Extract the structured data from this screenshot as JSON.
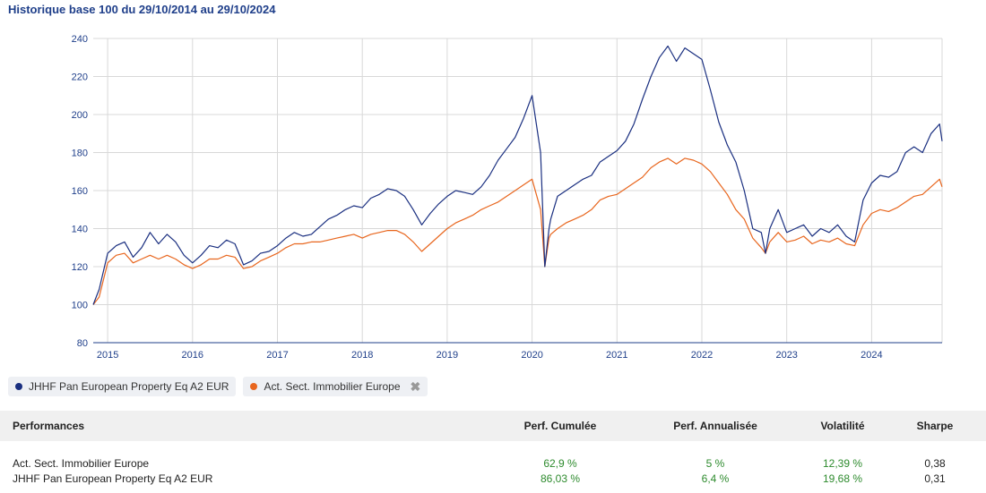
{
  "header": {
    "title": "Historique base 100 du 29/10/2014 au 29/10/2024"
  },
  "chart_data": {
    "type": "line",
    "title": "Historique base 100 du 29/10/2014 au 29/10/2024",
    "ylim": [
      80,
      240
    ],
    "yticks": [
      80,
      100,
      120,
      140,
      160,
      180,
      200,
      220,
      240
    ],
    "xlim": [
      2014.83,
      2024.83
    ],
    "xticks": [
      2015,
      2016,
      2017,
      2018,
      2019,
      2020,
      2021,
      2022,
      2023,
      2024
    ],
    "xtick_labels": [
      "2015",
      "2016",
      "2017",
      "2018",
      "2019",
      "2020",
      "2021",
      "2022",
      "2023",
      "2024"
    ],
    "grid": true,
    "legend_position": "bottom-left",
    "series": [
      {
        "name": "JHHF Pan European Property Eq A2 EUR",
        "color": "#1a2f80",
        "x": [
          2014.83,
          2014.9,
          2015.0,
          2015.1,
          2015.2,
          2015.3,
          2015.4,
          2015.5,
          2015.6,
          2015.7,
          2015.8,
          2015.9,
          2016.0,
          2016.1,
          2016.2,
          2016.3,
          2016.4,
          2016.5,
          2016.6,
          2016.7,
          2016.8,
          2016.9,
          2017.0,
          2017.1,
          2017.2,
          2017.3,
          2017.4,
          2017.5,
          2017.6,
          2017.7,
          2017.8,
          2017.9,
          2018.0,
          2018.1,
          2018.2,
          2018.3,
          2018.4,
          2018.5,
          2018.6,
          2018.7,
          2018.8,
          2018.9,
          2019.0,
          2019.1,
          2019.2,
          2019.3,
          2019.4,
          2019.5,
          2019.6,
          2019.7,
          2019.8,
          2019.9,
          2020.0,
          2020.1,
          2020.15,
          2020.2,
          2020.22,
          2020.3,
          2020.4,
          2020.5,
          2020.6,
          2020.7,
          2020.8,
          2020.9,
          2021.0,
          2021.1,
          2021.2,
          2021.3,
          2021.4,
          2021.5,
          2021.6,
          2021.7,
          2021.8,
          2021.9,
          2022.0,
          2022.1,
          2022.2,
          2022.3,
          2022.4,
          2022.5,
          2022.6,
          2022.7,
          2022.75,
          2022.8,
          2022.9,
          2023.0,
          2023.1,
          2023.2,
          2023.3,
          2023.4,
          2023.5,
          2023.6,
          2023.7,
          2023.8,
          2023.9,
          2024.0,
          2024.1,
          2024.2,
          2024.3,
          2024.4,
          2024.5,
          2024.6,
          2024.7,
          2024.8,
          2024.83
        ],
        "values": [
          100,
          108,
          127,
          131,
          133,
          125,
          130,
          138,
          132,
          137,
          133,
          126,
          122,
          126,
          131,
          130,
          134,
          132,
          121,
          123,
          127,
          128,
          131,
          135,
          138,
          136,
          137,
          141,
          145,
          147,
          150,
          152,
          151,
          156,
          158,
          161,
          160,
          157,
          150,
          142,
          148,
          153,
          157,
          160,
          159,
          158,
          162,
          168,
          176,
          182,
          188,
          198,
          210,
          180,
          120,
          140,
          145,
          157,
          160,
          163,
          166,
          168,
          175,
          178,
          181,
          186,
          195,
          208,
          220,
          230,
          236,
          228,
          235,
          232,
          229,
          213,
          196,
          184,
          175,
          160,
          140,
          138,
          127,
          140,
          150,
          138,
          140,
          142,
          136,
          140,
          138,
          142,
          136,
          133,
          155,
          164,
          168,
          167,
          170,
          180,
          183,
          180,
          190,
          195,
          186
        ]
      },
      {
        "name": "Act. Sect. Immobilier Europe",
        "color": "#e8661e",
        "x": [
          2014.83,
          2014.9,
          2015.0,
          2015.1,
          2015.2,
          2015.3,
          2015.4,
          2015.5,
          2015.6,
          2015.7,
          2015.8,
          2015.9,
          2016.0,
          2016.1,
          2016.2,
          2016.3,
          2016.4,
          2016.5,
          2016.6,
          2016.7,
          2016.8,
          2016.9,
          2017.0,
          2017.1,
          2017.2,
          2017.3,
          2017.4,
          2017.5,
          2017.6,
          2017.7,
          2017.8,
          2017.9,
          2018.0,
          2018.1,
          2018.2,
          2018.3,
          2018.4,
          2018.5,
          2018.6,
          2018.7,
          2018.8,
          2018.9,
          2019.0,
          2019.1,
          2019.2,
          2019.3,
          2019.4,
          2019.5,
          2019.6,
          2019.7,
          2019.8,
          2019.9,
          2020.0,
          2020.1,
          2020.15,
          2020.2,
          2020.22,
          2020.3,
          2020.4,
          2020.5,
          2020.6,
          2020.7,
          2020.8,
          2020.9,
          2021.0,
          2021.1,
          2021.2,
          2021.3,
          2021.4,
          2021.5,
          2021.6,
          2021.7,
          2021.8,
          2021.9,
          2022.0,
          2022.1,
          2022.2,
          2022.3,
          2022.4,
          2022.5,
          2022.6,
          2022.7,
          2022.75,
          2022.8,
          2022.9,
          2023.0,
          2023.1,
          2023.2,
          2023.3,
          2023.4,
          2023.5,
          2023.6,
          2023.7,
          2023.8,
          2023.9,
          2024.0,
          2024.1,
          2024.2,
          2024.3,
          2024.4,
          2024.5,
          2024.6,
          2024.7,
          2024.8,
          2024.83
        ],
        "values": [
          100,
          104,
          122,
          126,
          127,
          122,
          124,
          126,
          124,
          126,
          124,
          121,
          119,
          121,
          124,
          124,
          126,
          125,
          119,
          120,
          123,
          125,
          127,
          130,
          132,
          132,
          133,
          133,
          134,
          135,
          136,
          137,
          135,
          137,
          138,
          139,
          139,
          137,
          133,
          128,
          132,
          136,
          140,
          143,
          145,
          147,
          150,
          152,
          154,
          157,
          160,
          163,
          166,
          150,
          120,
          135,
          137,
          140,
          143,
          145,
          147,
          150,
          155,
          157,
          158,
          161,
          164,
          167,
          172,
          175,
          177,
          174,
          177,
          176,
          174,
          170,
          164,
          158,
          150,
          145,
          135,
          130,
          127,
          133,
          138,
          133,
          134,
          136,
          132,
          134,
          133,
          135,
          132,
          131,
          142,
          148,
          150,
          149,
          151,
          154,
          157,
          158,
          162,
          166,
          162
        ]
      }
    ]
  },
  "legend": [
    {
      "label": "JHHF Pan European Property Eq A2 EUR",
      "color": "#1a2f80"
    },
    {
      "label": "Act. Sect. Immobilier Europe",
      "color": "#e8661e",
      "close_icon": "close-icon"
    }
  ],
  "performances": {
    "headers": {
      "name": "Performances",
      "cum": "Perf. Cumulée",
      "ann": "Perf. Annualisée",
      "vol": "Volatilité",
      "sharpe": "Sharpe"
    },
    "rows": [
      {
        "name": "Act. Sect. Immobilier Europe",
        "cum": "62,9 %",
        "ann": "5 %",
        "vol": "12,39 %",
        "sharpe": "0,38"
      },
      {
        "name": "JHHF Pan European Property Eq A2 EUR",
        "cum": "86,03 %",
        "ann": "6,4 %",
        "vol": "19,68 %",
        "sharpe": "0,31"
      }
    ]
  }
}
